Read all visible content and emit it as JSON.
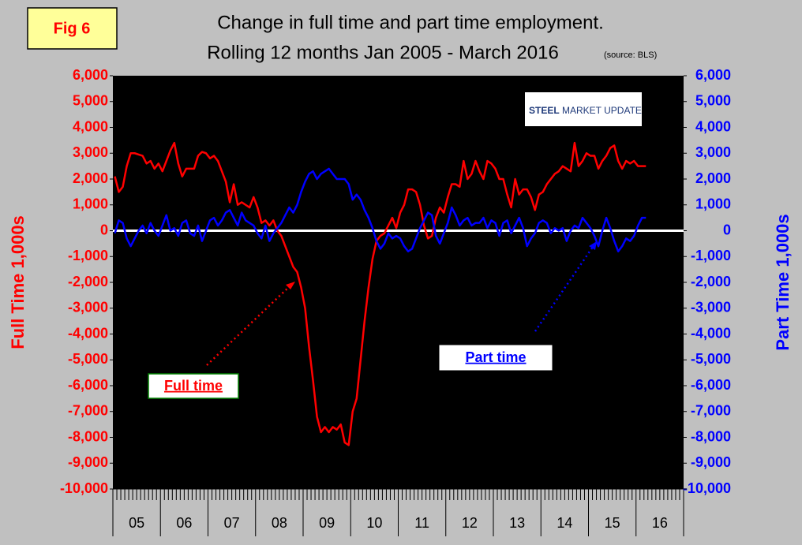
{
  "chart_data": {
    "type": "line",
    "badge": "Fig 6",
    "title": [
      "Change in full time and part time employment.",
      "Rolling 12 months Jan 2005 - March 2016"
    ],
    "source": "(source: BLS)",
    "logo": [
      "STEEL",
      "MARKET UPDATE"
    ],
    "ylabel": "Full Time 1,000s",
    "y2label": "Part Time 1,000s",
    "xlim": [
      0,
      144
    ],
    "xticks": [
      {
        "value": 6,
        "label": "05"
      },
      {
        "value": 18,
        "label": "06"
      },
      {
        "value": 30,
        "label": "07"
      },
      {
        "value": 42,
        "label": "08"
      },
      {
        "value": 54,
        "label": "09"
      },
      {
        "value": 66,
        "label": "10"
      },
      {
        "value": 78,
        "label": "11"
      },
      {
        "value": 90,
        "label": "12"
      },
      {
        "value": 102,
        "label": "13"
      },
      {
        "value": 114,
        "label": "14"
      },
      {
        "value": 126,
        "label": "15"
      },
      {
        "value": 138,
        "label": "16"
      }
    ],
    "ylim": [
      -10000,
      6000
    ],
    "yticks": [
      {
        "value": -10000,
        "label": "-10,000"
      },
      {
        "value": -9000,
        "label": "-9,000"
      },
      {
        "value": -8000,
        "label": "-8,000"
      },
      {
        "value": -7000,
        "label": "-7,000"
      },
      {
        "value": -6000,
        "label": "-6,000"
      },
      {
        "value": -5000,
        "label": "-5,000"
      },
      {
        "value": -4000,
        "label": "-4,000"
      },
      {
        "value": -3000,
        "label": "-3,000"
      },
      {
        "value": -2000,
        "label": "-2,000"
      },
      {
        "value": -1000,
        "label": "-1,000"
      },
      0,
      {
        "value": 1000,
        "label": "1,000"
      },
      {
        "value": 2000,
        "label": "2,000"
      },
      {
        "value": 3000,
        "label": "3,000"
      },
      {
        "value": 4000,
        "label": "4,000"
      },
      {
        "value": 5000,
        "label": "5,000"
      },
      {
        "value": 6000,
        "label": "6,000"
      }
    ],
    "y2lim": [
      -10000,
      6000
    ],
    "y2ticks": [
      {
        "value": -10000,
        "label": "-10,000"
      },
      {
        "value": -9000,
        "label": "-9,000"
      },
      {
        "value": -8000,
        "label": "-8,000"
      },
      {
        "value": -7000,
        "label": "-7,000"
      },
      {
        "value": -6000,
        "label": "-6,000"
      },
      {
        "value": -5000,
        "label": "-5,000"
      },
      {
        "value": -4000,
        "label": "-4,000"
      },
      {
        "value": -3000,
        "label": "-3,000"
      },
      {
        "value": -2000,
        "label": "-2,000"
      },
      {
        "value": -1000,
        "label": "-1,000"
      },
      0,
      {
        "value": 1000,
        "label": "1,000"
      },
      {
        "value": 2000,
        "label": "2,000"
      },
      {
        "value": 3000,
        "label": "3,000"
      },
      {
        "value": 4000,
        "label": "4,000"
      },
      {
        "value": 5000,
        "label": "5,000"
      },
      {
        "value": 6000,
        "label": "6,000"
      }
    ],
    "series": [
      {
        "name": "Full time",
        "color": "#ff0000",
        "values": [
          2100,
          1500,
          1700,
          2500,
          3000,
          3000,
          2950,
          2900,
          2600,
          2700,
          2400,
          2600,
          2300,
          2700,
          3100,
          3400,
          2600,
          2100,
          2400,
          2400,
          2400,
          2900,
          3050,
          3000,
          2800,
          2900,
          2700,
          2300,
          1900,
          1100,
          1800,
          1000,
          1100,
          1000,
          900,
          1300,
          900,
          300,
          400,
          200,
          400,
          0,
          -200,
          -600,
          -1000,
          -1400,
          -1600,
          -2200,
          -3000,
          -4500,
          -5800,
          -7200,
          -7800,
          -7600,
          -7800,
          -7600,
          -7700,
          -7500,
          -8200,
          -8300,
          -7000,
          -6500,
          -5000,
          -3500,
          -2200,
          -1100,
          -400,
          -200,
          -100,
          200,
          500,
          100,
          700,
          1000,
          1600,
          1600,
          1500,
          1000,
          200,
          -300,
          -200,
          500,
          900,
          700,
          1300,
          1800,
          1800,
          1700,
          2700,
          2000,
          2200,
          2700,
          2300,
          2000,
          2700,
          2600,
          2400,
          2000,
          2000,
          1400,
          900,
          2000,
          1400,
          1600,
          1600,
          1300,
          800,
          1400,
          1500,
          1800,
          2000,
          2200,
          2300,
          2500,
          2400,
          2300,
          3400,
          2500,
          2700,
          3000,
          2900,
          2900,
          2400,
          2700,
          2900,
          3200,
          3300,
          2700,
          2400,
          2700,
          2600,
          2700,
          2500,
          2500,
          2500
        ]
      },
      {
        "name": "Part time",
        "color": "#0000ff",
        "axis": "y2",
        "values": [
          -100,
          400,
          300,
          -300,
          -600,
          -300,
          0,
          200,
          -100,
          300,
          0,
          -200,
          200,
          600,
          0,
          100,
          -200,
          300,
          400,
          -100,
          -200,
          200,
          -400,
          0,
          400,
          500,
          200,
          400,
          700,
          800,
          500,
          200,
          700,
          400,
          300,
          200,
          -100,
          -300,
          200,
          -400,
          -100,
          100,
          300,
          600,
          900,
          700,
          1000,
          1500,
          1900,
          2200,
          2300,
          2000,
          2200,
          2300,
          2400,
          2200,
          2000,
          2000,
          2000,
          1800,
          1200,
          1400,
          1200,
          800,
          500,
          100,
          -400,
          -700,
          -500,
          -100,
          -300,
          -200,
          -300,
          -600,
          -800,
          -700,
          -300,
          100,
          400,
          700,
          600,
          -200,
          -500,
          -100,
          300,
          900,
          600,
          200,
          400,
          500,
          200,
          300,
          300,
          500,
          100,
          400,
          300,
          -200,
          300,
          400,
          -100,
          200,
          500,
          100,
          -600,
          -300,
          -100,
          300,
          400,
          300,
          -100,
          100,
          0,
          100,
          -400,
          0,
          200,
          100,
          500,
          300,
          100,
          -200,
          -600,
          0,
          500,
          100,
          -400,
          -800,
          -600,
          -300,
          -400,
          -200,
          200,
          500,
          500
        ]
      }
    ]
  }
}
